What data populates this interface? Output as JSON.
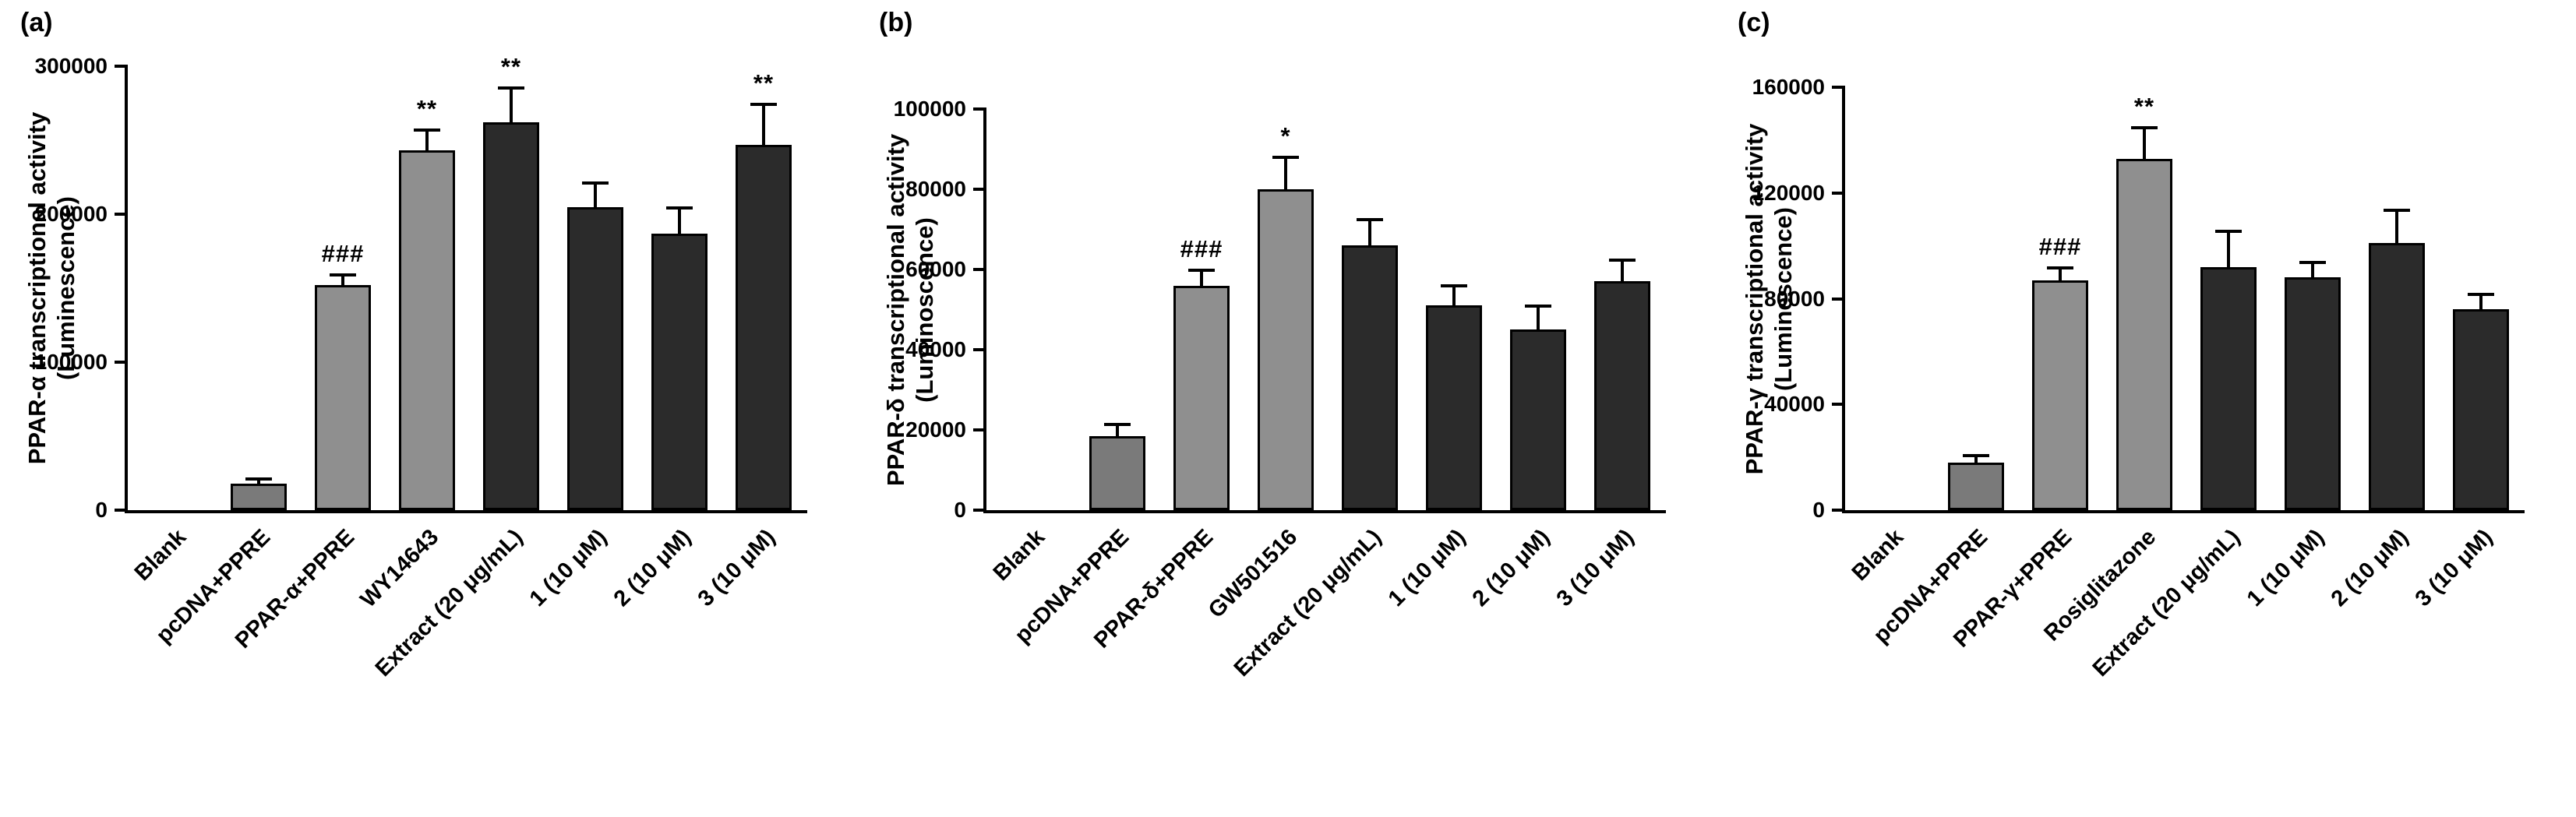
{
  "figure": {
    "background": "#ffffff",
    "text_color": "#000000",
    "panel_count": 3
  },
  "chart_data": [
    {
      "type": "bar",
      "panel_label": "(a)",
      "title": "",
      "xlabel": "",
      "ylabel": "PPAR-α transcriptional activity (Luminescence)",
      "ylabel_line1": "PPAR-α transcriptional activity",
      "ylabel_line2": "(Luminescence)",
      "ylim": [
        0,
        300000
      ],
      "yticks": [
        0,
        100000,
        200000,
        300000
      ],
      "grid": false,
      "legend": false,
      "categories": [
        "Blank",
        "pcDNA+PPRE",
        "PPAR-α+PPRE",
        "WY14643",
        "Extract (20 μg/mL)",
        "1 (10 μM)",
        "2 (10 μM)",
        "3 (10 μM)"
      ],
      "values": [
        0,
        18000,
        152000,
        243000,
        262000,
        205000,
        187000,
        247000
      ],
      "errors": [
        0,
        2000,
        6000,
        13000,
        22000,
        15000,
        16000,
        26000
      ],
      "annotations": [
        "",
        "",
        "###",
        "**",
        "**",
        "",
        "",
        "**"
      ],
      "bar_colors": [
        "#2b2b2b",
        "#7a7a7a",
        "#8f8f8f",
        "#8f8f8f",
        "#2b2b2b",
        "#2b2b2b",
        "#2b2b2b",
        "#2b2b2b"
      ]
    },
    {
      "type": "bar",
      "panel_label": "(b)",
      "title": "",
      "xlabel": "",
      "ylabel": "PPAR-δ transcriptional activity (Luminoscence)",
      "ylabel_line1": "PPAR-δ transcriptional activity",
      "ylabel_line2": "(Luminoscence)",
      "ylim": [
        0,
        100000
      ],
      "yticks": [
        0,
        20000,
        40000,
        60000,
        80000,
        100000
      ],
      "grid": false,
      "legend": false,
      "categories": [
        "Blank",
        "pcDNA+PPRE",
        "PPAR-δ+PPRE",
        "GW501516",
        "Extract (20 μg/mL)",
        "1 (10 μM)",
        "2 (10 μM)",
        "3 (10 μM)"
      ],
      "values": [
        0,
        18500,
        56000,
        80000,
        66000,
        51000,
        45000,
        57000
      ],
      "errors": [
        0,
        2500,
        3500,
        7500,
        6000,
        4500,
        5500,
        5000
      ],
      "annotations": [
        "",
        "",
        "###",
        "*",
        "",
        "",
        "",
        ""
      ],
      "bar_colors": [
        "#2b2b2b",
        "#7a7a7a",
        "#8f8f8f",
        "#8f8f8f",
        "#2b2b2b",
        "#2b2b2b",
        "#2b2b2b",
        "#2b2b2b"
      ]
    },
    {
      "type": "bar",
      "panel_label": "(c)",
      "title": "",
      "xlabel": "",
      "ylabel": "PPAR-γ transcriptional activity (Luminescence)",
      "ylabel_line1": "PPAR-γ transcriptional activity",
      "ylabel_line2": "(Luminescence)",
      "ylim": [
        0,
        160000
      ],
      "yticks": [
        0,
        40000,
        80000,
        120000,
        160000
      ],
      "grid": false,
      "legend": false,
      "categories": [
        "Blank",
        "pcDNA+PPRE",
        "PPAR-γ+PPRE",
        "Rosiglitazone",
        "Extract (20 μg/mL)",
        "1 (10 μM)",
        "2 (10 μM)",
        "3 (10 μM)"
      ],
      "values": [
        0,
        18000,
        87000,
        133000,
        92000,
        88000,
        101000,
        76000
      ],
      "errors": [
        0,
        2000,
        4000,
        11000,
        13000,
        5000,
        12000,
        5000
      ],
      "annotations": [
        "",
        "",
        "###",
        "**",
        "",
        "",
        "",
        ""
      ],
      "bar_colors": [
        "#2b2b2b",
        "#7a7a7a",
        "#8f8f8f",
        "#8f8f8f",
        "#2b2b2b",
        "#2b2b2b",
        "#2b2b2b",
        "#2b2b2b"
      ]
    }
  ]
}
